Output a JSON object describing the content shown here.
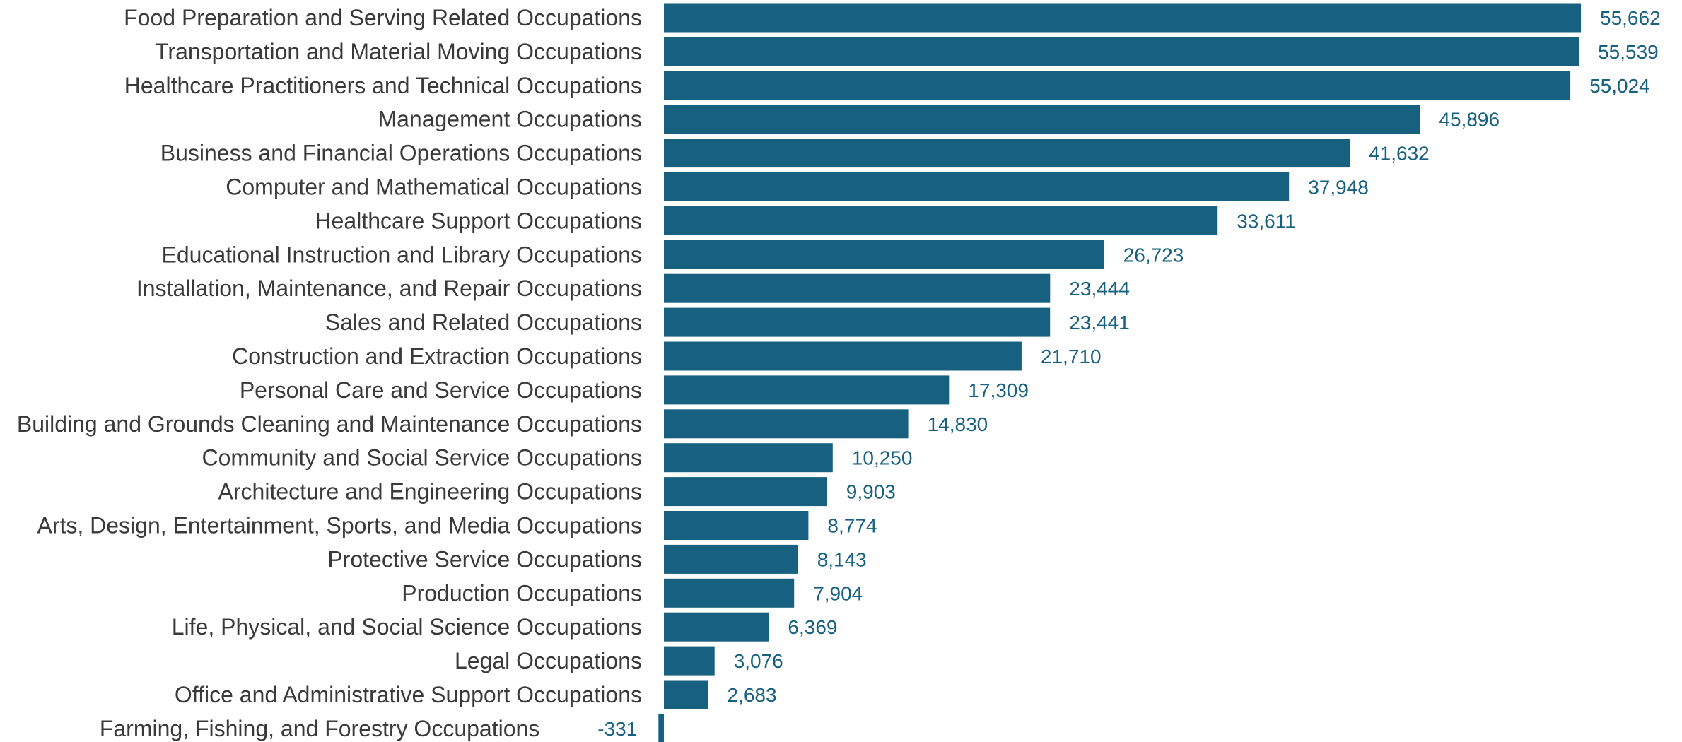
{
  "chart_data": {
    "type": "bar",
    "orientation": "horizontal",
    "categories": [
      "Food Preparation and Serving Related Occupations",
      "Transportation and Material Moving Occupations",
      "Healthcare Practitioners and Technical Occupations",
      "Management Occupations",
      "Business and Financial Operations Occupations",
      "Computer and Mathematical Occupations",
      "Healthcare Support Occupations",
      "Educational Instruction and Library Occupations",
      "Installation, Maintenance, and Repair Occupations",
      "Sales and Related Occupations",
      "Construction and Extraction Occupations",
      "Personal Care and Service Occupations",
      "Building and Grounds Cleaning and Maintenance Occupations",
      "Community and Social Service Occupations",
      "Architecture and Engineering Occupations",
      "Arts, Design, Entertainment, Sports, and Media Occupations",
      "Protective Service Occupations",
      "Production Occupations",
      "Life, Physical, and Social Science Occupations",
      "Legal Occupations",
      "Office and Administrative Support Occupations",
      "Farming, Fishing, and Forestry Occupations"
    ],
    "values": [
      55662,
      55539,
      55024,
      45896,
      41632,
      37948,
      33611,
      26723,
      23444,
      23441,
      21710,
      17309,
      14830,
      10250,
      9903,
      8774,
      8143,
      7904,
      6369,
      3076,
      2683,
      -331
    ],
    "value_labels": [
      "55,662",
      "55,539",
      "55,024",
      "45,896",
      "41,632",
      "37,948",
      "33,611",
      "26,723",
      "23,444",
      "23,441",
      "21,710",
      "17,309",
      "14,830",
      "10,250",
      "9,903",
      "8,774",
      "8,143",
      "7,904",
      "6,369",
      "3,076",
      "2,683",
      "-331"
    ],
    "xlim": [
      -331,
      55662
    ],
    "title": "",
    "xlabel": "",
    "ylabel": "",
    "grid": false,
    "legend": "none",
    "colors": {
      "bar": "#17607f",
      "value_label": "#17607f",
      "category_label": "#3a3a3a"
    }
  }
}
